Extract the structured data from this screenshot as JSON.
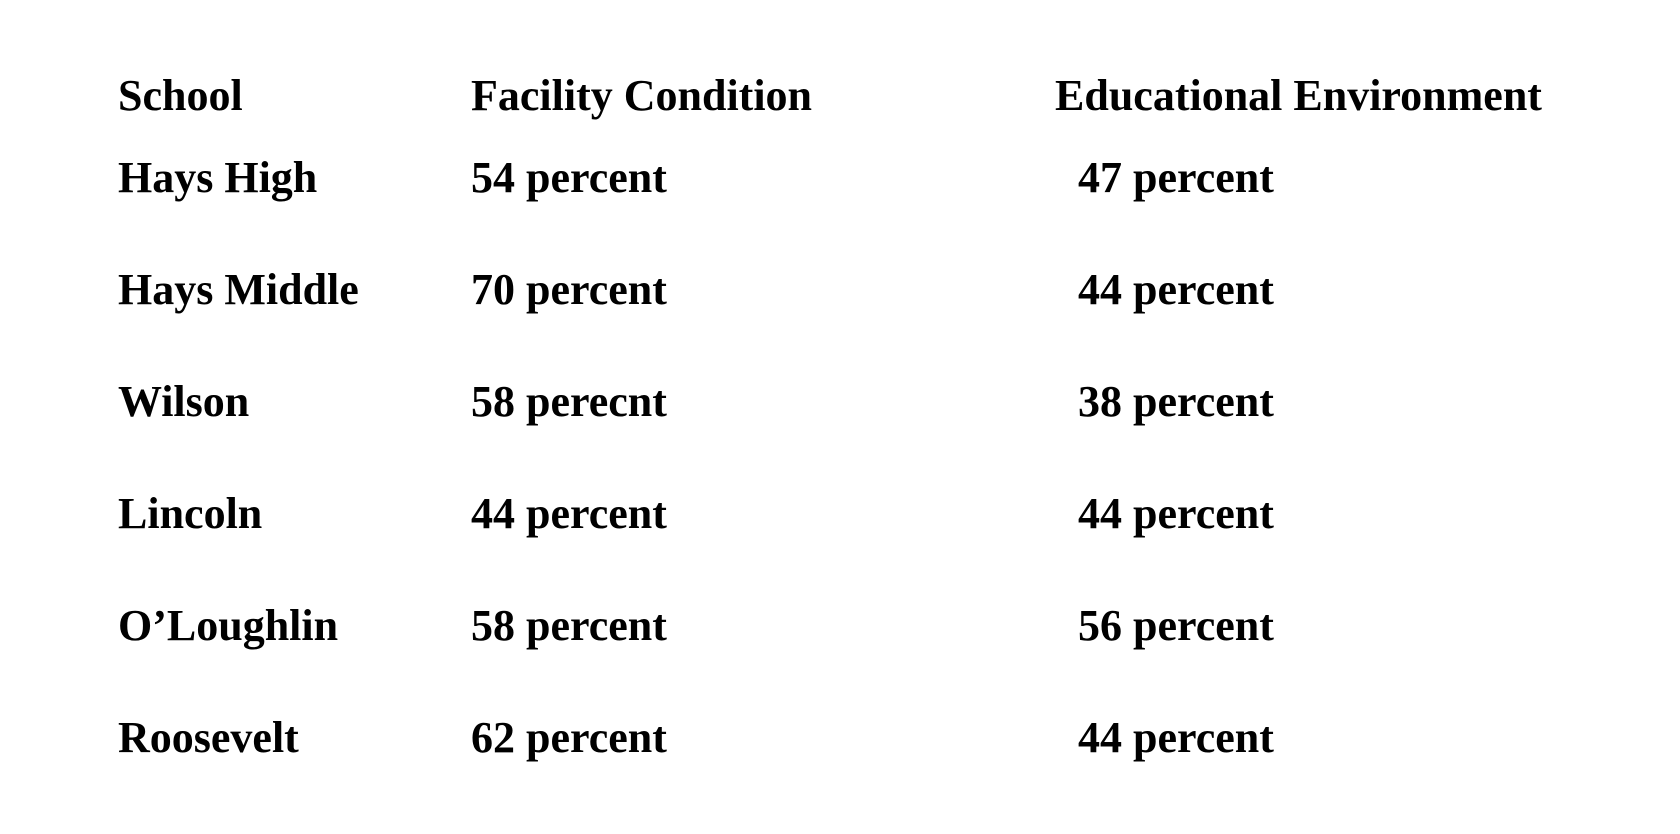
{
  "table": {
    "headers": {
      "school": "School",
      "facility": "Facility Condition",
      "education": "Educational Environment"
    },
    "rows": [
      {
        "school": "Hays High",
        "facility": "54 percent",
        "education": "47 percent"
      },
      {
        "school": "Hays Middle",
        "facility": "70 percent",
        "education": "44 percent"
      },
      {
        "school": "Wilson",
        "facility": "58 perecnt",
        "education": "38 percent"
      },
      {
        "school": "Lincoln",
        "facility": "44 percent",
        "education": "44 percent"
      },
      {
        "school": "O’Loughlin",
        "facility": "58 percent",
        "education": "56 percent"
      },
      {
        "school": "Roosevelt",
        "facility": "62 percent",
        "education": "44 percent"
      }
    ]
  }
}
